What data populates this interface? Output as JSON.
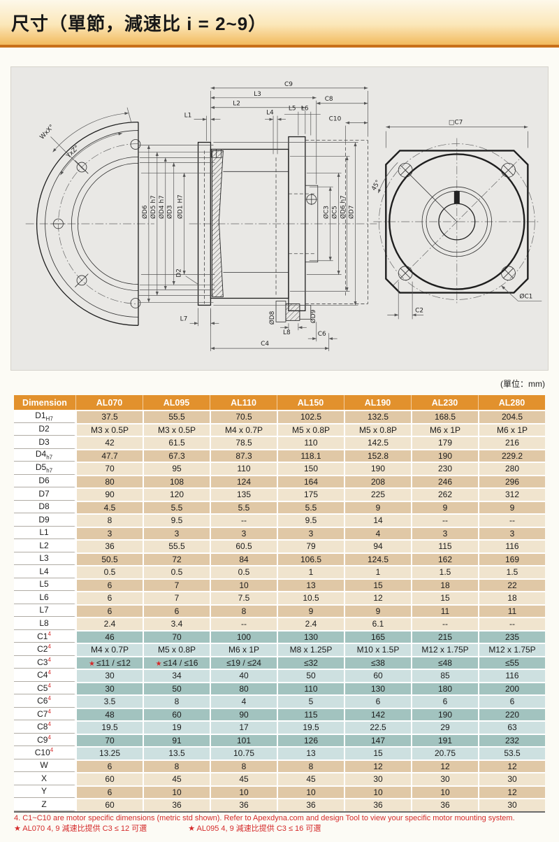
{
  "header": {
    "title": "尺寸（單節，減速比 i = 2~9）"
  },
  "units_label": "(單位：mm)",
  "drawing": {
    "dims": {
      "c9": "C9",
      "l3": "L3",
      "l2": "L2",
      "l1": "L1",
      "l4": "L4",
      "l5": "L5",
      "l6": "L6",
      "c8": "C8",
      "c10": "C10",
      "wx": "WxX°",
      "yz": "YxZ°",
      "d6": "ØD6",
      "d5": "ØD5 h7",
      "d4": "ØD4 h7",
      "d3": "ØD3",
      "d1": "ØD1 H7",
      "d2": "D2",
      "l7": "L7",
      "d8": "ØD8",
      "l8": "L8",
      "d9": "ØD9",
      "c6": "C6",
      "c4": "C4",
      "c3": "ØC3",
      "c5": "ØC5",
      "d6h7": "ØD6 h7",
      "d7": "ØD7",
      "c7": "□C7",
      "deg45": "45°",
      "c1": "ØC1",
      "c2": "C2"
    }
  },
  "table": {
    "columns": [
      "Dimension",
      "AL070",
      "AL095",
      "AL110",
      "AL150",
      "AL190",
      "AL230",
      "AL280"
    ],
    "colors": {
      "header_bg": "#e2912d",
      "tanD": "#e0c8a6",
      "tanL": "#f0e4ce",
      "tealD": "#a2c3bf",
      "tealL": "#cde0e0"
    },
    "rows": [
      {
        "label": "D1",
        "sub": "H7",
        "sup": null,
        "band": "tanD",
        "values": [
          "37.5",
          "55.5",
          "70.5",
          "102.5",
          "132.5",
          "168.5",
          "204.5"
        ]
      },
      {
        "label": "D2",
        "sub": null,
        "sup": null,
        "band": "tanL",
        "values": [
          "M3 x 0.5P",
          "M3 x 0.5P",
          "M4 x 0.7P",
          "M5 x 0.8P",
          "M5 x 0.8P",
          "M6 x 1P",
          "M6 x 1P"
        ]
      },
      {
        "label": "D3",
        "sub": null,
        "sup": null,
        "band": "tanL",
        "values": [
          "42",
          "61.5",
          "78.5",
          "110",
          "142.5",
          "179",
          "216"
        ]
      },
      {
        "label": "D4",
        "sub": "h7",
        "sup": null,
        "band": "tanD",
        "values": [
          "47.7",
          "67.3",
          "87.3",
          "118.1",
          "152.8",
          "190",
          "229.2"
        ]
      },
      {
        "label": "D5",
        "sub": "h7",
        "sup": null,
        "band": "tanL",
        "values": [
          "70",
          "95",
          "110",
          "150",
          "190",
          "230",
          "280"
        ]
      },
      {
        "label": "D6",
        "sub": null,
        "sup": null,
        "band": "tanD",
        "values": [
          "80",
          "108",
          "124",
          "164",
          "208",
          "246",
          "296"
        ]
      },
      {
        "label": "D7",
        "sub": null,
        "sup": null,
        "band": "tanL",
        "values": [
          "90",
          "120",
          "135",
          "175",
          "225",
          "262",
          "312"
        ]
      },
      {
        "label": "D8",
        "sub": null,
        "sup": null,
        "band": "tanD",
        "values": [
          "4.5",
          "5.5",
          "5.5",
          "5.5",
          "9",
          "9",
          "9"
        ]
      },
      {
        "label": "D9",
        "sub": null,
        "sup": null,
        "band": "tanL",
        "values": [
          "8",
          "9.5",
          "--",
          "9.5",
          "14",
          "--",
          "--"
        ]
      },
      {
        "label": "L1",
        "sub": null,
        "sup": null,
        "band": "tanD",
        "values": [
          "3",
          "3",
          "3",
          "3",
          "4",
          "3",
          "3"
        ]
      },
      {
        "label": "L2",
        "sub": null,
        "sup": null,
        "band": "tanL",
        "values": [
          "36",
          "55.5",
          "60.5",
          "79",
          "94",
          "115",
          "116"
        ]
      },
      {
        "label": "L3",
        "sub": null,
        "sup": null,
        "band": "tanD",
        "values": [
          "50.5",
          "72",
          "84",
          "106.5",
          "124.5",
          "162",
          "169"
        ]
      },
      {
        "label": "L4",
        "sub": null,
        "sup": null,
        "band": "tanL",
        "values": [
          "0.5",
          "0.5",
          "0.5",
          "1",
          "1",
          "1.5",
          "1.5"
        ]
      },
      {
        "label": "L5",
        "sub": null,
        "sup": null,
        "band": "tanD",
        "values": [
          "6",
          "7",
          "10",
          "13",
          "15",
          "18",
          "22"
        ]
      },
      {
        "label": "L6",
        "sub": null,
        "sup": null,
        "band": "tanL",
        "values": [
          "6",
          "7",
          "7.5",
          "10.5",
          "12",
          "15",
          "18"
        ]
      },
      {
        "label": "L7",
        "sub": null,
        "sup": null,
        "band": "tanD",
        "values": [
          "6",
          "6",
          "8",
          "9",
          "9",
          "11",
          "11"
        ]
      },
      {
        "label": "L8",
        "sub": null,
        "sup": null,
        "band": "tanL",
        "values": [
          "2.4",
          "3.4",
          "--",
          "2.4",
          "6.1",
          "--",
          "--"
        ]
      },
      {
        "label": "C1",
        "sub": null,
        "sup": "4",
        "band": "tealD",
        "values": [
          "46",
          "70",
          "100",
          "130",
          "165",
          "215",
          "235"
        ]
      },
      {
        "label": "C2",
        "sub": null,
        "sup": "4",
        "band": "tealL",
        "values": [
          "M4 x 0.7P",
          "M5 x 0.8P",
          "M6 x 1P",
          "M8 x 1.25P",
          "M10 x 1.5P",
          "M12 x 1.75P",
          "M12 x 1.75P"
        ]
      },
      {
        "label": "C3",
        "sub": null,
        "sup": "4",
        "band": "tealD",
        "values": [
          "★ ≤11 / ≤12",
          "★ ≤14 / ≤16",
          "≤19 / ≤24",
          "≤32",
          "≤38",
          "≤48",
          "≤55"
        ]
      },
      {
        "label": "C4",
        "sub": null,
        "sup": "4",
        "band": "tealL",
        "values": [
          "30",
          "34",
          "40",
          "50",
          "60",
          "85",
          "116"
        ]
      },
      {
        "label": "C5",
        "sub": null,
        "sup": "4",
        "band": "tealD",
        "values": [
          "30",
          "50",
          "80",
          "110",
          "130",
          "180",
          "200"
        ]
      },
      {
        "label": "C6",
        "sub": null,
        "sup": "4",
        "band": "tealL",
        "values": [
          "3.5",
          "8",
          "4",
          "5",
          "6",
          "6",
          "6"
        ]
      },
      {
        "label": "C7",
        "sub": null,
        "sup": "4",
        "band": "tealD",
        "values": [
          "48",
          "60",
          "90",
          "115",
          "142",
          "190",
          "220"
        ]
      },
      {
        "label": "C8",
        "sub": null,
        "sup": "4",
        "band": "tealL",
        "values": [
          "19.5",
          "19",
          "17",
          "19.5",
          "22.5",
          "29",
          "63"
        ]
      },
      {
        "label": "C9",
        "sub": null,
        "sup": "4",
        "band": "tealD",
        "values": [
          "70",
          "91",
          "101",
          "126",
          "147",
          "191",
          "232"
        ]
      },
      {
        "label": "C10",
        "sub": null,
        "sup": "4",
        "band": "tealL",
        "values": [
          "13.25",
          "13.5",
          "10.75",
          "13",
          "15",
          "20.75",
          "53.5"
        ]
      },
      {
        "label": "W",
        "sub": null,
        "sup": null,
        "band": "tanD",
        "values": [
          "6",
          "8",
          "8",
          "8",
          "12",
          "12",
          "12"
        ]
      },
      {
        "label": "X",
        "sub": null,
        "sup": null,
        "band": "tanL",
        "values": [
          "60",
          "45",
          "45",
          "45",
          "30",
          "30",
          "30"
        ]
      },
      {
        "label": "Y",
        "sub": null,
        "sup": null,
        "band": "tanD",
        "values": [
          "6",
          "10",
          "10",
          "10",
          "10",
          "10",
          "12"
        ]
      },
      {
        "label": "Z",
        "sub": null,
        "sup": null,
        "band": "tanL",
        "values": [
          "60",
          "36",
          "36",
          "36",
          "36",
          "36",
          "30"
        ]
      }
    ]
  },
  "footnotes": {
    "line1": "4. C1~C10 are motor specific dimensions (metric std shown).   Refer to Apexdyna.com and design Tool to view your specific motor  mounting system.",
    "note_al070": "★ AL070  4, 9 減速比提供 C3 ≤ 12 可選",
    "note_al095": "★ AL095  4, 9 減速比提供 C3 ≤ 16 可選"
  }
}
